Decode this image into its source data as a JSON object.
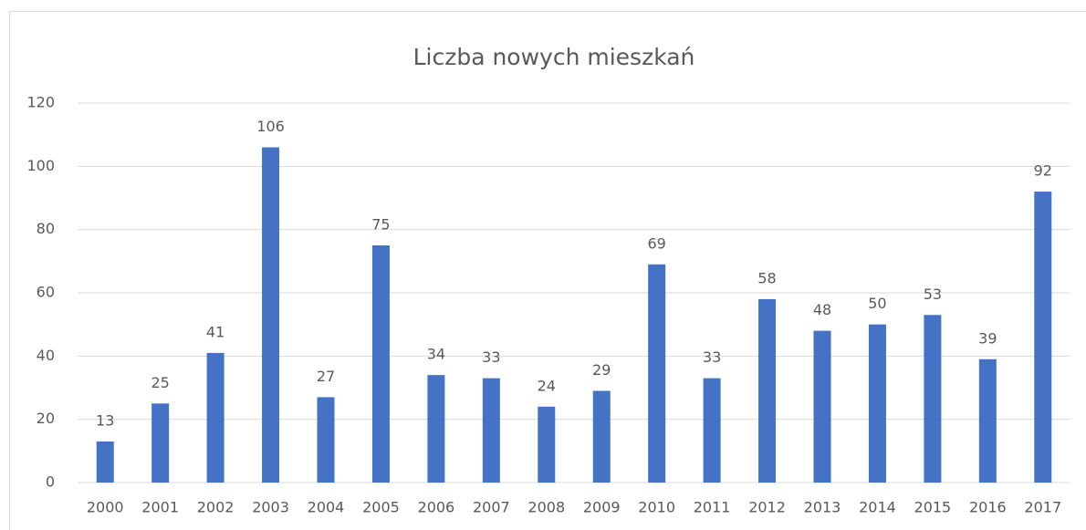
{
  "chart_data": {
    "type": "bar",
    "title": "Liczba nowych mieszkań",
    "categories": [
      "2000",
      "2001",
      "2002",
      "2003",
      "2004",
      "2005",
      "2006",
      "2007",
      "2008",
      "2009",
      "2010",
      "2011",
      "2012",
      "2013",
      "2014",
      "2015",
      "2016",
      "2017"
    ],
    "values": [
      13,
      25,
      41,
      106,
      27,
      75,
      34,
      33,
      24,
      29,
      69,
      33,
      58,
      48,
      50,
      53,
      39,
      92
    ],
    "color": "#4472c4",
    "ylim": [
      0,
      120
    ],
    "yticks": [
      0,
      20,
      40,
      60,
      80,
      100,
      120
    ],
    "grid": true
  }
}
